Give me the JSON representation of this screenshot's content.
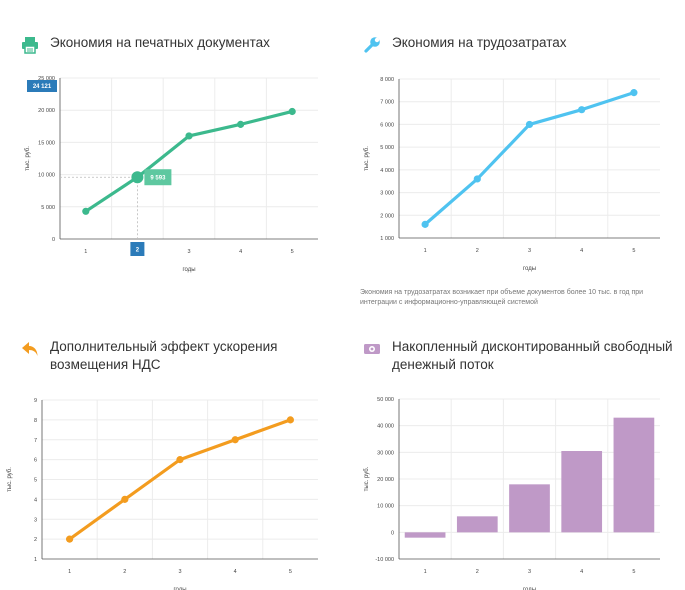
{
  "panels": [
    {
      "title": "Экономия на печатных документах",
      "icon": "printer-icon",
      "note": "",
      "chart_data": {
        "type": "line",
        "color": "#3cb98d",
        "x": [
          1,
          2,
          3,
          4,
          5
        ],
        "values": [
          4300,
          9593,
          16000,
          17800,
          19800
        ],
        "xlabel": "годы",
        "ylabel": "тыс. руб.",
        "ylim": [
          0,
          25000
        ],
        "yticks": [
          0,
          5000,
          10000,
          15000,
          20000,
          25000
        ],
        "ytick_labels": [
          "0",
          "5 000",
          "10 000",
          "15 000",
          "20 000",
          "25 000"
        ],
        "grid": true,
        "tooltip": {
          "x": 2,
          "value_label": "9 593",
          "x_label": "2",
          "y_label": "24 121"
        }
      }
    },
    {
      "title": "Экономия на трудозатратах",
      "icon": "wrench-icon",
      "note": "Экономия на трудозатратах возникает при объеме документов более 10 тыс. в год при интеграции с информационно-управляющей системой",
      "chart_data": {
        "type": "line",
        "color": "#4fc3f0",
        "x": [
          1,
          2,
          3,
          4,
          5
        ],
        "values": [
          1600,
          3600,
          6000,
          6650,
          7400
        ],
        "xlabel": "годы",
        "ylabel": "тыс. руб.",
        "ylim": [
          1000,
          8000
        ],
        "yticks": [
          1000,
          2000,
          3000,
          4000,
          5000,
          6000,
          7000,
          8000
        ],
        "ytick_labels": [
          "1 000",
          "2 000",
          "3 000",
          "4 000",
          "5 000",
          "6 000",
          "7 000",
          "8 000"
        ],
        "grid": true
      }
    },
    {
      "title": "Дополнительный эффект ускорения возмещения НДС",
      "icon": "arrow-back-icon",
      "note": "",
      "chart_data": {
        "type": "line",
        "color": "#f39c1f",
        "x": [
          1,
          2,
          3,
          4,
          5
        ],
        "values": [
          2,
          4,
          6,
          7,
          8
        ],
        "xlabel": "годы",
        "ylabel": "тыс. руб.",
        "ylim": [
          1,
          9
        ],
        "yticks": [
          1,
          2,
          3,
          4,
          5,
          6,
          7,
          8,
          9
        ],
        "ytick_labels": [
          "1",
          "2",
          "3",
          "4",
          "5",
          "6",
          "7",
          "8",
          "9"
        ],
        "grid": true
      }
    },
    {
      "title": "Накопленный дисконтированный свободный денежный поток",
      "icon": "money-icon",
      "note": "",
      "chart_data": {
        "type": "bar",
        "color": "#bf99c7",
        "x": [
          1,
          2,
          3,
          4,
          5
        ],
        "values": [
          -2000,
          6000,
          18000,
          30500,
          43000
        ],
        "xlabel": "годы",
        "ylabel": "тыс. руб.",
        "ylim": [
          -10000,
          50000
        ],
        "yticks": [
          -10000,
          0,
          10000,
          20000,
          30000,
          40000,
          50000
        ],
        "ytick_labels": [
          "-10 000",
          "0",
          "10 000",
          "20 000",
          "30 000",
          "40 000",
          "50 000"
        ],
        "grid": true
      }
    }
  ]
}
